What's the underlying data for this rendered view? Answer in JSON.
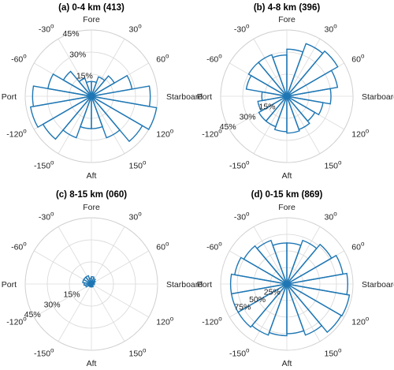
{
  "figure": {
    "line_color": "#1f77b4"
  },
  "chart_data": [
    {
      "type": "polar-histogram",
      "title": "(a) 0-4 km (413)",
      "rmax": 0.45,
      "r_ticks": [
        0.15,
        0.3,
        0.45
      ],
      "r_tick_labels": [
        "15%",
        "30%",
        "45%"
      ],
      "r_label_angle_deg": -18,
      "theta_labels": [
        {
          "angle": 0,
          "text": "Fore"
        },
        {
          "angle": 30,
          "text": "30",
          "sup": "o"
        },
        {
          "angle": 60,
          "text": "60",
          "sup": "o"
        },
        {
          "angle": 90,
          "text": "Starboard"
        },
        {
          "angle": 120,
          "text": "120",
          "sup": "o"
        },
        {
          "angle": 150,
          "text": "150",
          "sup": "o"
        },
        {
          "angle": 180,
          "text": "Aft"
        },
        {
          "angle": -150,
          "text": "-150",
          "sup": "o"
        },
        {
          "angle": -120,
          "text": "-120",
          "sup": "o"
        },
        {
          "angle": -90,
          "text": "Port"
        },
        {
          "angle": -60,
          "text": "-60",
          "sup": "o"
        },
        {
          "angle": -30,
          "text": "-30",
          "sup": "o"
        }
      ],
      "bin_edges_deg": [
        0,
        20,
        40,
        60,
        80,
        100,
        120,
        140,
        160,
        180,
        200,
        220,
        240,
        260,
        280,
        300,
        320,
        340,
        360
      ],
      "values": [
        0.1,
        0.14,
        0.18,
        0.28,
        0.4,
        0.45,
        0.4,
        0.3,
        0.22,
        0.22,
        0.3,
        0.38,
        0.42,
        0.4,
        0.3,
        0.22,
        0.13,
        0.1
      ]
    },
    {
      "type": "polar-histogram",
      "title": "(b) 4-8 km (396)",
      "rmax": 0.45,
      "r_ticks": [
        0.15,
        0.3,
        0.45
      ],
      "r_tick_labels": [
        "15%",
        "30%",
        "45%"
      ],
      "r_label_angle_deg": -117,
      "theta_labels": [
        {
          "angle": 0,
          "text": "Fore"
        },
        {
          "angle": 30,
          "text": "30",
          "sup": "o"
        },
        {
          "angle": 60,
          "text": "60",
          "sup": "o"
        },
        {
          "angle": 90,
          "text": "Starboard"
        },
        {
          "angle": 120,
          "text": "120",
          "sup": "o"
        },
        {
          "angle": 150,
          "text": "150",
          "sup": "o"
        },
        {
          "angle": 180,
          "text": "Aft"
        },
        {
          "angle": -150,
          "text": "-150",
          "sup": "o"
        },
        {
          "angle": -120,
          "text": "-120",
          "sup": "o"
        },
        {
          "angle": -90,
          "text": "Port"
        },
        {
          "angle": -60,
          "text": "-60",
          "sup": "o"
        },
        {
          "angle": -30,
          "text": "-30",
          "sup": "o"
        }
      ],
      "bin_edges_deg": [
        0,
        20,
        40,
        60,
        80,
        100,
        120,
        140,
        160,
        180,
        200,
        220,
        240,
        260,
        280,
        300,
        320,
        340,
        360
      ],
      "values": [
        0.32,
        0.38,
        0.4,
        0.35,
        0.3,
        0.25,
        0.22,
        0.24,
        0.25,
        0.24,
        0.22,
        0.22,
        0.2,
        0.17,
        0.28,
        0.3,
        0.3,
        0.28
      ]
    },
    {
      "type": "polar-histogram",
      "title": "(c) 8-15 km (060)",
      "rmax": 0.45,
      "r_ticks": [
        0.15,
        0.3,
        0.45
      ],
      "r_tick_labels": [
        "15%",
        "30%",
        "45%"
      ],
      "r_label_angle_deg": -117,
      "theta_labels": [
        {
          "angle": 0,
          "text": "Fore"
        },
        {
          "angle": 30,
          "text": "30",
          "sup": "o"
        },
        {
          "angle": 60,
          "text": "60",
          "sup": "o"
        },
        {
          "angle": 90,
          "text": "Starboard"
        },
        {
          "angle": 120,
          "text": "120",
          "sup": "o"
        },
        {
          "angle": 150,
          "text": "150",
          "sup": "o"
        },
        {
          "angle": 180,
          "text": "Aft"
        },
        {
          "angle": -150,
          "text": "-150",
          "sup": "o"
        },
        {
          "angle": -120,
          "text": "-120",
          "sup": "o"
        },
        {
          "angle": -90,
          "text": "Port"
        },
        {
          "angle": -60,
          "text": "-60",
          "sup": "o"
        },
        {
          "angle": -30,
          "text": "-30",
          "sup": "o"
        }
      ],
      "bin_edges_deg": [
        0,
        20,
        40,
        60,
        80,
        100,
        120,
        140,
        160,
        180,
        200,
        220,
        240,
        260,
        280,
        300,
        320,
        340,
        360
      ],
      "values": [
        0.05,
        0.04,
        0.03,
        0.02,
        0.02,
        0.01,
        0.01,
        0.02,
        0.02,
        0.02,
        0.02,
        0.02,
        0.04,
        0.05,
        0.06,
        0.06,
        0.06,
        0.04
      ]
    },
    {
      "type": "polar-histogram",
      "title": "(d) 0-15 km (869)",
      "rmax": 1.0,
      "r_ticks": [
        0.25,
        0.5,
        0.75
      ],
      "r_tick_labels": [
        "25%",
        "50%",
        "75%"
      ],
      "r_label_angle_deg": -117,
      "theta_labels": [
        {
          "angle": 0,
          "text": "Fore"
        },
        {
          "angle": 30,
          "text": "30",
          "sup": "o"
        },
        {
          "angle": 60,
          "text": "60",
          "sup": "o"
        },
        {
          "angle": 90,
          "text": "Starboard"
        },
        {
          "angle": 120,
          "text": "120",
          "sup": "o"
        },
        {
          "angle": 150,
          "text": "150",
          "sup": "o"
        },
        {
          "angle": 180,
          "text": "Aft"
        },
        {
          "angle": -150,
          "text": "-150",
          "sup": "o"
        },
        {
          "angle": -120,
          "text": "-120",
          "sup": "o"
        },
        {
          "angle": -90,
          "text": "Port"
        },
        {
          "angle": -60,
          "text": "-60",
          "sup": "o"
        },
        {
          "angle": -30,
          "text": "-30",
          "sup": "o"
        }
      ],
      "bin_edges_deg": [
        0,
        20,
        40,
        60,
        80,
        100,
        120,
        140,
        160,
        180,
        200,
        220,
        240,
        260,
        280,
        300,
        320,
        340,
        360
      ],
      "values": [
        0.62,
        0.7,
        0.78,
        0.86,
        0.92,
        0.96,
        0.95,
        0.82,
        0.75,
        0.78,
        0.82,
        0.85,
        0.85,
        0.85,
        0.8,
        0.75,
        0.7,
        0.62
      ]
    }
  ]
}
